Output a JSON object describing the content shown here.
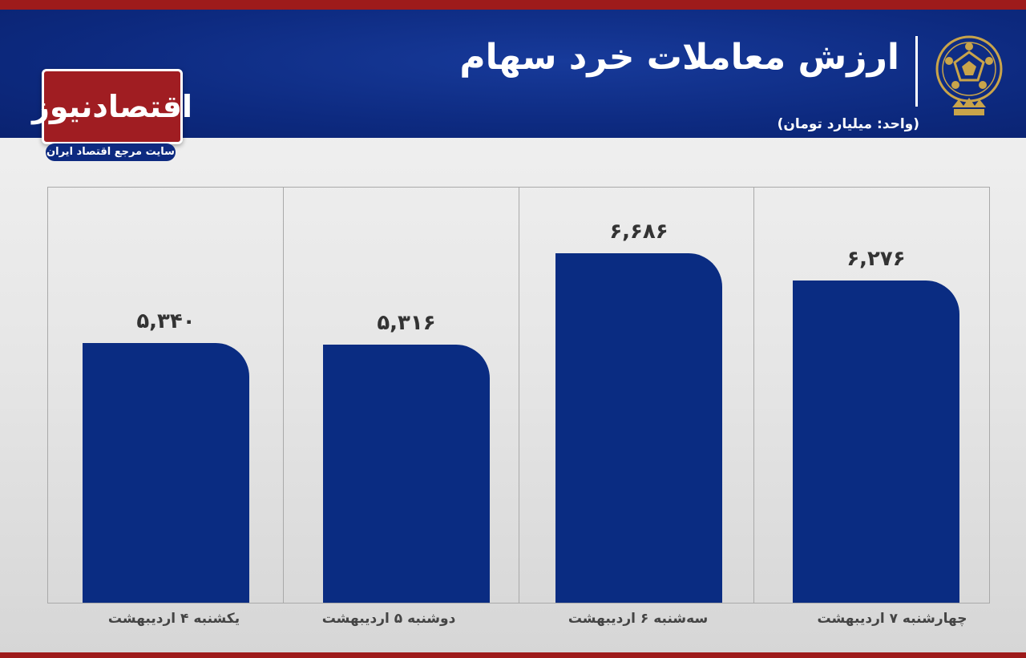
{
  "header": {
    "title": "ارزش معاملات خرد سهام",
    "subtitle": "(واحد: میلیارد تومان)"
  },
  "logo": {
    "name": "اقتصادنیوز",
    "tagline": "سایت مرجع اقتصاد ایران"
  },
  "colors": {
    "bar": "#0a2c82",
    "header": "#0d2a80",
    "accent": "#9e1b1b"
  },
  "chart_data": {
    "type": "bar",
    "title": "ارزش معاملات خرد سهام",
    "unit": "(واحد: میلیارد تومان)",
    "categories": [
      "یکشنبه ۴ اردیبهشت",
      "دوشنبه ۵ اردیبهشت",
      "سه‌شنبه ۶ اردیبهشت",
      "چهارشنبه ۷ اردیبهشت"
    ],
    "values": [
      5340,
      5316,
      6686,
      6276
    ],
    "value_labels": [
      "۵,۳۴۰",
      "۵,۳۱۶",
      "۶,۶۸۶",
      "۶,۲۷۶"
    ],
    "grid": false,
    "legend": "none"
  }
}
